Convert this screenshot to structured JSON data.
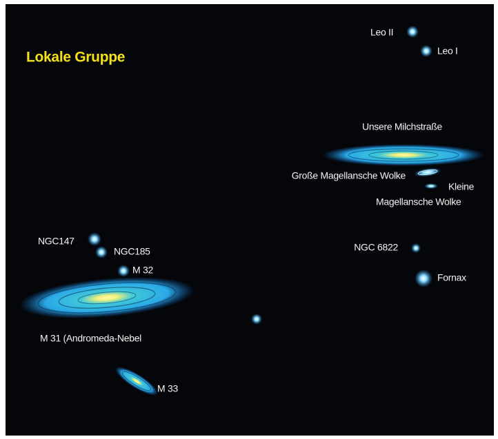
{
  "title": "Lokale Gruppe",
  "objects": [
    {
      "label": "Leo II"
    },
    {
      "label": "Leo I"
    },
    {
      "label": "Unsere Milchstraße"
    },
    {
      "label": "Große Magellansche Wolke"
    },
    {
      "label": "Kleine"
    },
    {
      "label": "Magellansche Wolke"
    },
    {
      "label": "NGC 6822"
    },
    {
      "label": "Fornax"
    },
    {
      "label": "NGC147"
    },
    {
      "label": "NGC185"
    },
    {
      "label": "M 32"
    },
    {
      "label": "M 31 (Andromeda-Nebel"
    },
    {
      "label": "M 33"
    }
  ]
}
